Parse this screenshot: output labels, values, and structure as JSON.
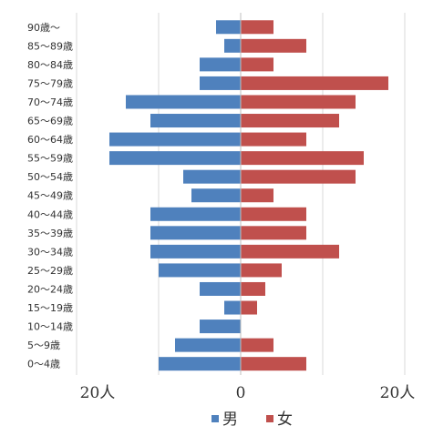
{
  "chart_data": {
    "type": "bar",
    "orientation": "horizontal",
    "categories": [
      "90歳～",
      "85～89歳",
      "80～84歳",
      "75～79歳",
      "70～74歳",
      "65～69歳",
      "60～64歳",
      "55～59歳",
      "50～54歳",
      "45～49歳",
      "40～44歳",
      "35～39歳",
      "30～34歳",
      "25～29歳",
      "20～24歳",
      "15～19歳",
      "10～14歳",
      "5～9歳",
      "0～4歳"
    ],
    "series": [
      {
        "name": "男",
        "color": "#4f81bd",
        "values": [
          3,
          2,
          5,
          5,
          14,
          11,
          16,
          16,
          7,
          6,
          11,
          11,
          11,
          10,
          5,
          2,
          5,
          8,
          10
        ]
      },
      {
        "name": "女",
        "color": "#c0504d",
        "values": [
          4,
          8,
          4,
          18,
          14,
          12,
          8,
          15,
          14,
          4,
          8,
          8,
          12,
          5,
          3,
          2,
          0,
          4,
          8
        ]
      }
    ],
    "xlim": [
      -20,
      20
    ],
    "x_tick_labels": [
      "20人",
      "0",
      "20人"
    ],
    "grid": true,
    "legend": "bottom"
  }
}
